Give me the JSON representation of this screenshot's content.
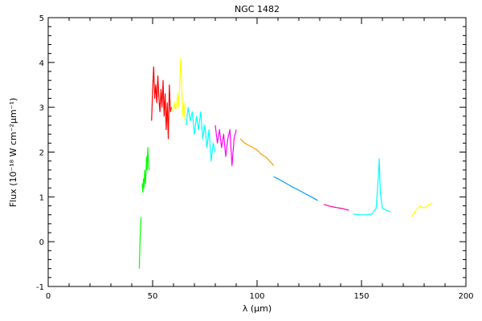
{
  "chart_data": {
    "type": "line",
    "title": "NGC 1482",
    "xlabel": "λ (μm)",
    "ylabel": "Flux (10⁻¹⁸ W cm⁻²μm⁻¹)",
    "xlim": [
      0,
      200
    ],
    "ylim": [
      -1,
      5
    ],
    "xticks": [
      0,
      50,
      100,
      150,
      200
    ],
    "yticks": [
      -1,
      0,
      1,
      2,
      3,
      4,
      5
    ],
    "grid": false,
    "legend": "none",
    "series": [
      {
        "color": "#00ff00",
        "x": [
          43.6,
          43.9,
          44.2,
          44.5
        ],
        "y": [
          -0.6,
          -0.1,
          0.3,
          0.55
        ]
      },
      {
        "color": "#00ff00",
        "x": [
          45.0,
          45.3,
          45.6,
          45.9,
          46.2,
          46.5,
          46.8,
          47.1,
          47.4,
          47.7,
          48.0,
          48.3
        ],
        "y": [
          1.3,
          1.1,
          1.4,
          1.2,
          1.6,
          1.3,
          1.5,
          1.9,
          1.6,
          2.1,
          1.8,
          1.6
        ]
      },
      {
        "color": "#ff0000",
        "x": [
          49.5,
          50,
          50.5,
          51,
          51.5,
          52,
          52.5,
          53,
          53.5,
          54,
          54.5,
          55,
          55.5,
          56,
          56.5,
          57,
          57.5,
          58,
          58.5,
          59
        ],
        "y": [
          2.7,
          3.4,
          3.9,
          3.2,
          3.5,
          3.1,
          3.7,
          3.2,
          2.9,
          3.4,
          3.0,
          3.6,
          2.8,
          3.3,
          2.5,
          3.1,
          2.3,
          3.5,
          2.9,
          3.0
        ]
      },
      {
        "color": "#ffff00",
        "x": [
          59.5,
          60,
          60.5,
          61,
          61.5,
          62,
          62.5,
          63,
          63.5,
          64,
          64.5,
          65,
          65.5
        ],
        "y": [
          2.9,
          3.0,
          3.1,
          2.95,
          3.05,
          3.3,
          3.0,
          3.6,
          4.1,
          3.3,
          2.8,
          3.1,
          2.7
        ]
      },
      {
        "color": "#00ffff",
        "x": [
          66,
          67,
          68,
          69,
          70,
          71,
          72,
          73,
          74,
          75,
          76,
          77,
          78,
          79,
          80
        ],
        "y": [
          2.6,
          3.0,
          2.7,
          2.9,
          2.4,
          2.8,
          2.5,
          2.9,
          2.3,
          2.6,
          2.1,
          2.5,
          1.8,
          2.2,
          2.0
        ]
      },
      {
        "color": "#ff00ff",
        "x": [
          80,
          81,
          82,
          83,
          84,
          85,
          86,
          87,
          88,
          89,
          90
        ],
        "y": [
          2.6,
          2.2,
          2.5,
          2.1,
          2.4,
          1.9,
          2.3,
          2.5,
          1.7,
          2.3,
          2.5
        ]
      },
      {
        "color": "#ff9900",
        "x": [
          92,
          94,
          96,
          98,
          100,
          102,
          104,
          106,
          108
        ],
        "y": [
          2.3,
          2.2,
          2.15,
          2.1,
          2.05,
          1.95,
          1.9,
          1.8,
          1.7
        ]
      },
      {
        "color": "#0099ff",
        "x": [
          108,
          111,
          114,
          117,
          120,
          123,
          126,
          129
        ],
        "y": [
          1.45,
          1.38,
          1.3,
          1.22,
          1.15,
          1.07,
          1.0,
          0.92
        ]
      },
      {
        "color": "#ff0099",
        "x": [
          132,
          135,
          138,
          141,
          144
        ],
        "y": [
          0.83,
          0.79,
          0.76,
          0.74,
          0.7
        ]
      },
      {
        "color": "#00ffff",
        "x": [
          146,
          149,
          152,
          155,
          157,
          158,
          158.5,
          159,
          160,
          162,
          164
        ],
        "y": [
          0.62,
          0.6,
          0.6,
          0.62,
          0.75,
          1.4,
          1.85,
          1.1,
          0.75,
          0.7,
          0.66
        ]
      },
      {
        "color": "#ffff00",
        "x": [
          174,
          176,
          178,
          180,
          182,
          184
        ],
        "y": [
          0.55,
          0.7,
          0.8,
          0.75,
          0.82,
          0.86
        ]
      }
    ]
  }
}
